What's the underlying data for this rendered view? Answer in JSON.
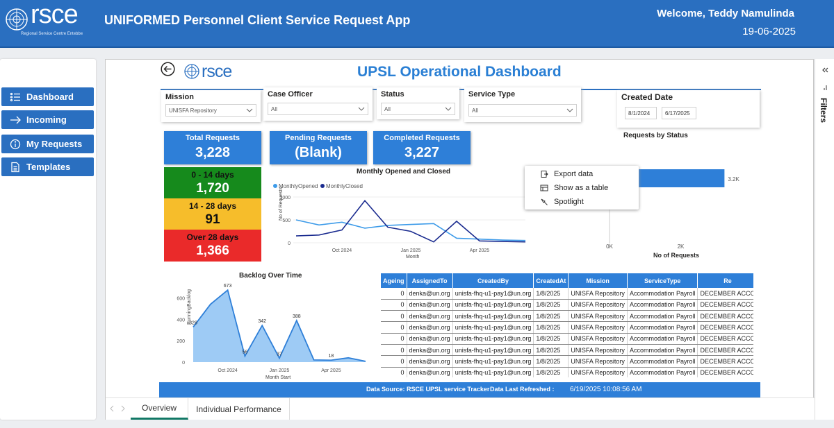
{
  "header": {
    "logo_text": "rsce",
    "logo_sub": "Regional Service Centre Entebbe",
    "app_title": "UNIFORMED Personnel Client Service Request App",
    "welcome": "Welcome, Teddy Namulinda",
    "date": "19-06-2025"
  },
  "nav": {
    "items": [
      {
        "label": "Dashboard",
        "icon": "list-icon"
      },
      {
        "label": "Incoming",
        "icon": "arrow-right-icon"
      },
      {
        "label": "My Requests",
        "icon": "info-icon"
      },
      {
        "label": "Templates",
        "icon": "document-icon"
      }
    ]
  },
  "report": {
    "logo_text": "rsce",
    "title": "UPSL Operational Dashboard",
    "slicers": {
      "mission": {
        "label": "Mission",
        "value": "UNISFA Repository"
      },
      "case_officer": {
        "label": "Case Officer",
        "value": "All"
      },
      "status": {
        "label": "Status",
        "value": "All"
      },
      "service_type": {
        "label": "Service Type",
        "value": "All"
      },
      "created_date": {
        "label": "Created Date",
        "from": "8/1/2024",
        "to": "6/17/2025"
      }
    },
    "kpis": {
      "total": {
        "label": "Total Requests",
        "value": "3,228"
      },
      "pending": {
        "label": "Pending Requests",
        "value": "(Blank)"
      },
      "completed": {
        "label": "Completed Requests",
        "value": "3,227"
      }
    },
    "ageing": [
      {
        "label": "0 - 14 days",
        "value": "1,720",
        "color": "#168a1c"
      },
      {
        "label": "14 - 28 days",
        "value": "91",
        "color": "#f6bd2b"
      },
      {
        "label": "Over 28 days",
        "value": "1,366",
        "color": "#ea2a2a"
      }
    ],
    "context_menu": [
      {
        "label": "Export data",
        "icon": "export-icon"
      },
      {
        "label": "Show as a table",
        "icon": "table-icon"
      },
      {
        "label": "Spotlight",
        "icon": "spotlight-icon"
      }
    ],
    "table": {
      "columns": [
        "Ageing",
        "AssignedTo",
        "CreatedBy",
        "CreatedAt",
        "Mission",
        "ServiceType",
        "Re"
      ],
      "rows": [
        [
          "0",
          "denka@un.org",
          "unisfa-fhq-u1-pay1@un.org",
          "1/8/2025",
          "UNISFA Repository",
          "Accommodation Payroll",
          "DECEMBER ACCO"
        ],
        [
          "0",
          "denka@un.org",
          "unisfa-fhq-u1-pay1@un.org",
          "1/8/2025",
          "UNISFA Repository",
          "Accommodation Payroll",
          "DECEMBER ACCO"
        ],
        [
          "0",
          "denka@un.org",
          "unisfa-fhq-u1-pay1@un.org",
          "1/8/2025",
          "UNISFA Repository",
          "Accommodation Payroll",
          "DECEMBER ACCO"
        ],
        [
          "0",
          "denka@un.org",
          "unisfa-fhq-u1-pay1@un.org",
          "1/8/2025",
          "UNISFA Repository",
          "Accommodation Payroll",
          "DECEMBER ACCO"
        ],
        [
          "0",
          "denka@un.org",
          "unisfa-fhq-u1-pay1@un.org",
          "1/8/2025",
          "UNISFA Repository",
          "Accommodation Payroll",
          "DECEMBER ACCO"
        ],
        [
          "0",
          "denka@un.org",
          "unisfa-fhq-u1-pay1@un.org",
          "1/8/2025",
          "UNISFA Repository",
          "Accommodation Payroll",
          "DECEMBER ACCO"
        ],
        [
          "0",
          "denka@un.org",
          "unisfa-fhq-u1-pay1@un.org",
          "1/8/2025",
          "UNISFA Repository",
          "Accommodation Payroll",
          "DECEMBER ACCO"
        ],
        [
          "0",
          "denka@un.org",
          "unisfa-fhq-u1-pay1@un.org",
          "1/8/2025",
          "UNISFA Repository",
          "Accommodation Payroll",
          "DECEMBER ACCO"
        ]
      ]
    },
    "footer": {
      "source": "Data Source: RSCE UPSL service Tracker",
      "refreshed_label": "Data Last Refreshed :",
      "refreshed_value": "6/19/2025 10:08:56 AM"
    },
    "tabs": [
      "Overview",
      "Individual Performance"
    ],
    "filters_label": "Filters"
  },
  "chart_data": [
    {
      "type": "line",
      "title": "Monthly Opened and Closed",
      "xlabel": "Month",
      "ylabel": "No of Requests",
      "x_ticks": [
        "Oct 2024",
        "Jan 2025",
        "Apr 2025"
      ],
      "y_ticks": [
        0,
        500,
        1000
      ],
      "ylim": [
        0,
        1000
      ],
      "x": [
        "Aug 2024",
        "Sep 2024",
        "Oct 2024",
        "Nov 2024",
        "Dec 2024",
        "Jan 2025",
        "Feb 2025",
        "Mar 2025",
        "Apr 2025",
        "May 2025",
        "Jun 2025"
      ],
      "series": [
        {
          "name": "MonthlyOpened",
          "color": "#3d9be9",
          "values": [
            500,
            390,
            450,
            320,
            380,
            400,
            420,
            100,
            80,
            60,
            50
          ]
        },
        {
          "name": "MonthlyClosed",
          "color": "#1a2b8f",
          "values": [
            150,
            170,
            280,
            920,
            340,
            250,
            20,
            470,
            40,
            30,
            20
          ]
        }
      ],
      "legend": "top-left"
    },
    {
      "type": "bar",
      "title": "Requests by Status",
      "orientation": "horizontal",
      "xlabel": "No of Requests",
      "categories": [
        ""
      ],
      "values": [
        3227
      ],
      "data_labels": [
        "3.2K"
      ],
      "x_ticks": [
        "0K",
        "2K"
      ],
      "xlim": [
        0,
        4000
      ]
    },
    {
      "type": "area",
      "title": "Backlog Over Time",
      "xlabel": "Month Start",
      "ylabel": "RunningBacklog",
      "x_ticks": [
        "Oct 2024",
        "Jan 2025",
        "Apr 2025"
      ],
      "y_ticks": [
        0,
        200,
        400,
        600
      ],
      "ylim": [
        0,
        700
      ],
      "values": [
        328,
        540,
        673,
        56,
        342,
        37,
        388,
        20,
        18,
        40,
        7
      ],
      "data_labels": [
        "328",
        "",
        "673",
        "56",
        "342",
        "37",
        "388",
        "",
        "18",
        "",
        ""
      ]
    }
  ]
}
